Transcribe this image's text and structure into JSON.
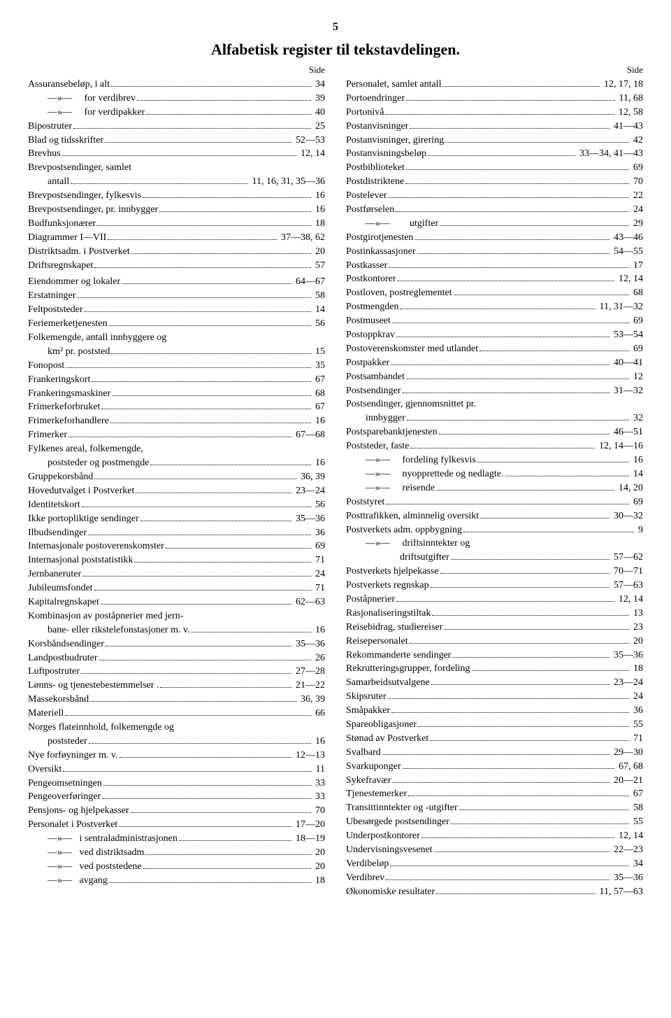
{
  "page_number": "5",
  "title": "Alfabetisk register til tekstavdelingen.",
  "side_label": "Side",
  "left": [
    {
      "label": "Assuransebeløp, i alt",
      "page": "34"
    },
    {
      "label": "—»—     for verdibrev",
      "page": "39",
      "indent": true
    },
    {
      "label": "—»—     for verdipakker",
      "page": "40",
      "indent": true
    },
    {
      "label": "Bipostruter",
      "page": "25"
    },
    {
      "label": "Blad og tidsskrifter",
      "page": "52—53"
    },
    {
      "label": "Brevhus",
      "page": "12,   14"
    },
    {
      "label": "Brevpostsendinger, samlet",
      "nodots": true
    },
    {
      "label": "antall",
      "page": "11, 16, 31, 35—36",
      "indent": true
    },
    {
      "label": "Brevpostsendinger, fylkesvis",
      "page": "16"
    },
    {
      "label": "Brevpostsendinger, pr. innbygger",
      "page": "16"
    },
    {
      "label": "Budfunksjonærer",
      "page": "18"
    },
    {
      "label": "Diagrammer I—VII",
      "page": "37—38,   62"
    },
    {
      "label": "Distriktsadm. i Postverket",
      "page": "20"
    },
    {
      "label": "Driftsregnskapet",
      "page": "57"
    },
    {
      "gap": true
    },
    {
      "label": "Eiendommer og lokaler",
      "page": "64—67"
    },
    {
      "label": "Erstatninger",
      "page": "58"
    },
    {
      "label": "Feltpoststeder",
      "page": "14"
    },
    {
      "label": "Feriemerketjenesten",
      "page": "56"
    },
    {
      "label": "Folkemengde, antall innbyggere og",
      "nodots": true
    },
    {
      "label": "km² pr. poststed",
      "page": "15",
      "indent": true
    },
    {
      "label": "Fonopost",
      "page": "35"
    },
    {
      "label": "Frankeringskort",
      "page": "67"
    },
    {
      "label": "Frankeringsmaskiner",
      "page": "68"
    },
    {
      "label": "Frimerkeforbruket",
      "page": "67"
    },
    {
      "label": "Frimerkeforhandlere",
      "page": "16"
    },
    {
      "label": "Frimerker",
      "page": "67—68"
    },
    {
      "label": "Fylkenes areal, folkemengde,",
      "nodots": true
    },
    {
      "label": "poststeder og postmengde",
      "page": "16",
      "indent": true
    },
    {
      "label": "Gruppekorsbånd",
      "page": "36,   39"
    },
    {
      "label": "Hovedutvalget i Postverket",
      "page": "23—24"
    },
    {
      "label": "Identitetskort",
      "page": "56"
    },
    {
      "label": "Ikke portopliktige sendinger",
      "page": "35—36"
    },
    {
      "label": "Ilbudsendinger",
      "page": "36"
    },
    {
      "label": "Internasjonale postoverenskomster",
      "page": "69"
    },
    {
      "label": "Internasjonal poststatistikk",
      "page": "71"
    },
    {
      "label": "Jernbaneruter",
      "page": "24"
    },
    {
      "label": "Jubileumsfondet",
      "page": "71"
    },
    {
      "label": "Kapitalregnskapet",
      "page": "62—63"
    },
    {
      "label": "Kombinasjon av poståpnerier med jern-",
      "nodots": true
    },
    {
      "label": "bane- eller rikstelefonstasjoner m. v.",
      "page": "16",
      "indent": true
    },
    {
      "label": "Korsbåndsendinger",
      "page": "35—36"
    },
    {
      "label": "Landpostbudruter",
      "page": "26"
    },
    {
      "label": "Luftpostruter",
      "page": "27—28"
    },
    {
      "label": "Lønns- og tjenestebestemmelser .",
      "page": "21—22"
    },
    {
      "label": "Massekorsbånd",
      "page": "36,   39"
    },
    {
      "label": "Materiell",
      "page": "66"
    },
    {
      "label": "Norges flateinnhold, folkemengde og",
      "nodots": true
    },
    {
      "label": "poststeder",
      "page": "16",
      "indent": true
    },
    {
      "label": "Nye forføyninger m. v.",
      "page": "12—13"
    },
    {
      "label": "Oversikt",
      "page": "11"
    },
    {
      "label": "Pengeomsetningen",
      "page": "33"
    },
    {
      "label": "Pengeoverføringer",
      "page": "33"
    },
    {
      "label": "Pensjons- og hjelpekasser",
      "page": "70"
    },
    {
      "label": "Personalet i Postverket",
      "page": "17—20"
    },
    {
      "label": "—»—   i sentraladministrasjonen",
      "page": "18—19",
      "indent": true
    },
    {
      "label": "—»—   ved distriktsadm.",
      "page": "20",
      "indent": true
    },
    {
      "label": "—»—   ved poststedene",
      "page": "20",
      "indent": true
    },
    {
      "label": "—»—   avgang",
      "page": "18",
      "indent": true
    }
  ],
  "right": [
    {
      "label": "Personalet, samlet antall",
      "page": "12,   17,   18"
    },
    {
      "label": "Portoendringer",
      "page": "11,   68"
    },
    {
      "label": "Portonivå",
      "page": "12,   58"
    },
    {
      "label": "Postanvisninger",
      "page": "41—43"
    },
    {
      "label": "Postanvisninger, girering",
      "page": "42"
    },
    {
      "label": "Postanvisningsbeløp",
      "page": "33—34,   41—43"
    },
    {
      "label": "Postbiblioteket",
      "page": "69"
    },
    {
      "label": "Postdistriktene",
      "page": "70"
    },
    {
      "label": "Postelever",
      "page": "22"
    },
    {
      "label": "Postførselen",
      "page": "24"
    },
    {
      "label": "—»—        utgifter",
      "page": "29",
      "indent": true
    },
    {
      "label": "Postgirotjenesten",
      "page": "43—46"
    },
    {
      "label": "Postinkassasjoner",
      "page": "54—55"
    },
    {
      "label": "Postkasser",
      "page": "17"
    },
    {
      "label": "Postkontorer",
      "page": "12,   14"
    },
    {
      "label": "Postloven, postreglementet",
      "page": "68"
    },
    {
      "label": "Postmengden",
      "page": "11,   31—32"
    },
    {
      "label": "Postmuseet",
      "page": "69"
    },
    {
      "label": "Postoppkrav",
      "page": "53—54"
    },
    {
      "label": "Postoverenskomster med utlandet",
      "page": "69"
    },
    {
      "label": "Postpakker",
      "page": "40—41"
    },
    {
      "label": "Postsambandet",
      "page": "12"
    },
    {
      "label": "Postsendinger",
      "page": "31—32"
    },
    {
      "label": "Postsendinger, gjennomsnittet pr.",
      "nodots": true
    },
    {
      "label": "innbygger",
      "page": "32",
      "indent": true
    },
    {
      "label": "Postsparebanktjenesten",
      "page": "46—51"
    },
    {
      "label": "Poststeder, faste",
      "page": "12,   14—16"
    },
    {
      "label": "—»—     fordeling fylkesvis",
      "page": "16",
      "indent": true
    },
    {
      "label": "—»—     nyopprettede og nedlagte.",
      "page": "14",
      "indent": true
    },
    {
      "label": "—»—     reisende",
      "page": "14,   20",
      "indent": true
    },
    {
      "label": "Poststyret",
      "page": "69"
    },
    {
      "label": "Posttrafikken, alminnelig oversikt",
      "page": "30—32"
    },
    {
      "label": "Postverkets adm. oppbygning",
      "page": "9"
    },
    {
      "label": "—»—     driftsinntekter og",
      "nodots": true,
      "indent": true
    },
    {
      "label": "              driftsutgifter",
      "page": "57—62",
      "indent": true
    },
    {
      "label": "Postverkets hjelpekasse",
      "page": "70—71"
    },
    {
      "label": "Postverkets regnskap",
      "page": "57—63"
    },
    {
      "label": "Poståpnerier",
      "page": "12,   14"
    },
    {
      "label": "Rasjonaliseringstiltak",
      "page": "13"
    },
    {
      "label": "Reisebidrag, studiereiser",
      "page": "23"
    },
    {
      "label": "Reisepersonalet",
      "page": "20"
    },
    {
      "label": "Rekommanderte sendinger",
      "page": "35—36"
    },
    {
      "label": "Rekrutteringsgrupper, fordeling",
      "page": "18"
    },
    {
      "label": "Samarbeidsutvalgene",
      "page": "23—24"
    },
    {
      "label": "Skipsruter",
      "page": "24"
    },
    {
      "label": "Småpakker",
      "page": "36"
    },
    {
      "label": "Spareobligasjoner",
      "page": "55"
    },
    {
      "label": "Stønad av Postverket",
      "page": "71"
    },
    {
      "label": "Svalbard",
      "page": "29—30"
    },
    {
      "label": "Svarkuponger",
      "page": "67,   68"
    },
    {
      "label": "Sykefravær",
      "page": "20—21"
    },
    {
      "label": "Tjenestemerker",
      "page": "67"
    },
    {
      "label": "Transittinntekter og -utgifter",
      "page": "58"
    },
    {
      "label": "Ubesørgede postsendinger",
      "page": "55"
    },
    {
      "label": "Underpostkontorer",
      "page": "12,   14"
    },
    {
      "label": "Undervisningsvesenet",
      "page": "22—23"
    },
    {
      "label": "Verdibeløp",
      "page": "34"
    },
    {
      "label": "Verdibrev",
      "page": "35—36"
    },
    {
      "label": "Økonomiske resultater",
      "page": "11,   57—63"
    }
  ]
}
